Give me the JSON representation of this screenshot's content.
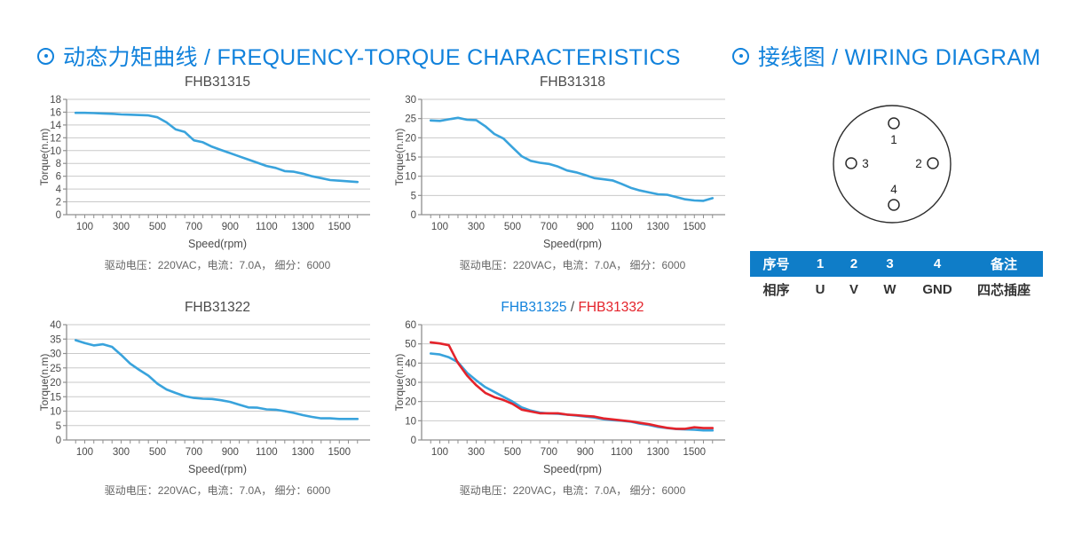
{
  "colors": {
    "accent_blue": "#1182DC",
    "curve_blue": "#39A3DC",
    "curve_red": "#E4232B",
    "table_header_bg": "#0F7DC8",
    "grid_gray": "#c9c9c9",
    "axis_gray": "#8f8f8f",
    "tick_text": "#4a4a4a"
  },
  "sections": {
    "charts_title": "动态力矩曲线 / FREQUENCY-TORQUE CHARACTERISTICS",
    "wiring_title": "接线图 / WIRING DIAGRAM"
  },
  "chart_data": [
    {
      "type": "line",
      "title_parts": [
        {
          "text": "FHB31315",
          "color": "#4a4a4a"
        }
      ],
      "xlabel": "Speed(rpm)",
      "ylabel": "Torque(n.m)",
      "caption": "驱动电压：220VAC，电流：7.0A， 细分：6000",
      "xlim": [
        0,
        1650
      ],
      "ylim": [
        0,
        18
      ],
      "ystep": 2,
      "xticks_labeled": [
        100,
        300,
        500,
        700,
        900,
        1100,
        1300,
        1500
      ],
      "xticks_minor_step": 50,
      "grid": "horizontal",
      "legend": "none",
      "series": [
        {
          "name": "FHB31315",
          "color": "#39A3DC",
          "points": [
            [
              50,
              15.9
            ],
            [
              100,
              15.9
            ],
            [
              150,
              15.85
            ],
            [
              200,
              15.8
            ],
            [
              250,
              15.75
            ],
            [
              300,
              15.65
            ],
            [
              350,
              15.6
            ],
            [
              400,
              15.55
            ],
            [
              450,
              15.5
            ],
            [
              500,
              15.2
            ],
            [
              550,
              14.4
            ],
            [
              600,
              13.3
            ],
            [
              650,
              12.9
            ],
            [
              700,
              11.6
            ],
            [
              750,
              11.3
            ],
            [
              800,
              10.6
            ],
            [
              850,
              10.1
            ],
            [
              900,
              9.6
            ],
            [
              950,
              9.1
            ],
            [
              1000,
              8.6
            ],
            [
              1050,
              8.1
            ],
            [
              1100,
              7.6
            ],
            [
              1150,
              7.3
            ],
            [
              1200,
              6.8
            ],
            [
              1250,
              6.7
            ],
            [
              1300,
              6.4
            ],
            [
              1350,
              6.0
            ],
            [
              1400,
              5.7
            ],
            [
              1450,
              5.4
            ],
            [
              1500,
              5.3
            ],
            [
              1550,
              5.2
            ],
            [
              1600,
              5.1
            ]
          ]
        }
      ]
    },
    {
      "type": "line",
      "title_parts": [
        {
          "text": "FHB31318",
          "color": "#4a4a4a"
        }
      ],
      "xlabel": "Speed(rpm)",
      "ylabel": "Torque(n.m)",
      "caption": "驱动电压：220VAC，电流：7.0A， 细分：6000",
      "xlim": [
        0,
        1650
      ],
      "ylim": [
        0,
        30
      ],
      "ystep": 5,
      "xticks_labeled": [
        100,
        300,
        500,
        700,
        900,
        1100,
        1300,
        1500
      ],
      "xticks_minor_step": 50,
      "grid": "horizontal",
      "legend": "none",
      "series": [
        {
          "name": "FHB31318",
          "color": "#39A3DC",
          "points": [
            [
              50,
              24.5
            ],
            [
              100,
              24.4
            ],
            [
              150,
              24.8
            ],
            [
              200,
              25.2
            ],
            [
              250,
              24.7
            ],
            [
              300,
              24.6
            ],
            [
              350,
              23.0
            ],
            [
              400,
              21.0
            ],
            [
              450,
              19.8
            ],
            [
              500,
              17.5
            ],
            [
              550,
              15.2
            ],
            [
              600,
              14.0
            ],
            [
              650,
              13.5
            ],
            [
              700,
              13.2
            ],
            [
              750,
              12.5
            ],
            [
              800,
              11.5
            ],
            [
              850,
              11.0
            ],
            [
              900,
              10.3
            ],
            [
              950,
              9.5
            ],
            [
              1000,
              9.2
            ],
            [
              1050,
              8.9
            ],
            [
              1100,
              8.0
            ],
            [
              1150,
              7.0
            ],
            [
              1200,
              6.3
            ],
            [
              1250,
              5.8
            ],
            [
              1300,
              5.3
            ],
            [
              1350,
              5.2
            ],
            [
              1400,
              4.6
            ],
            [
              1450,
              4.0
            ],
            [
              1500,
              3.7
            ],
            [
              1550,
              3.6
            ],
            [
              1600,
              4.3
            ]
          ]
        }
      ]
    },
    {
      "type": "line",
      "title_parts": [
        {
          "text": "FHB31322",
          "color": "#4a4a4a"
        }
      ],
      "xlabel": "Speed(rpm)",
      "ylabel": "Torque(n.m)",
      "caption": "驱动电压：220VAC，电流：7.0A， 细分：6000",
      "xlim": [
        0,
        1650
      ],
      "ylim": [
        0,
        40
      ],
      "ystep": 5,
      "xticks_labeled": [
        100,
        300,
        500,
        700,
        900,
        1100,
        1300,
        1500
      ],
      "xticks_minor_step": 50,
      "grid": "horizontal",
      "legend": "none",
      "series": [
        {
          "name": "FHB31322",
          "color": "#39A3DC",
          "points": [
            [
              50,
              34.6
            ],
            [
              100,
              33.6
            ],
            [
              150,
              32.8
            ],
            [
              200,
              33.2
            ],
            [
              250,
              32.3
            ],
            [
              300,
              29.5
            ],
            [
              350,
              26.5
            ],
            [
              400,
              24.3
            ],
            [
              450,
              22.3
            ],
            [
              500,
              19.5
            ],
            [
              550,
              17.5
            ],
            [
              600,
              16.3
            ],
            [
              650,
              15.2
            ],
            [
              700,
              14.6
            ],
            [
              750,
              14.3
            ],
            [
              800,
              14.2
            ],
            [
              850,
              13.8
            ],
            [
              900,
              13.2
            ],
            [
              950,
              12.2
            ],
            [
              1000,
              11.3
            ],
            [
              1050,
              11.2
            ],
            [
              1100,
              10.6
            ],
            [
              1150,
              10.5
            ],
            [
              1200,
              10.0
            ],
            [
              1250,
              9.4
            ],
            [
              1300,
              8.6
            ],
            [
              1350,
              8.0
            ],
            [
              1400,
              7.5
            ],
            [
              1450,
              7.5
            ],
            [
              1500,
              7.3
            ],
            [
              1550,
              7.3
            ],
            [
              1600,
              7.3
            ]
          ]
        }
      ]
    },
    {
      "type": "line",
      "title_parts": [
        {
          "text": "FHB31325",
          "color": "#1182DC"
        },
        {
          "text": " / ",
          "color": "#4a4a4a"
        },
        {
          "text": "FHB31332",
          "color": "#E4232B"
        }
      ],
      "xlabel": "Speed(rpm)",
      "ylabel": "Torque(n.m)",
      "caption": "驱动电压：220VAC，电流：7.0A， 细分：6000",
      "xlim": [
        0,
        1650
      ],
      "ylim": [
        0,
        60
      ],
      "ystep": 10,
      "xticks_labeled": [
        100,
        300,
        500,
        700,
        900,
        1100,
        1300,
        1500
      ],
      "xticks_minor_step": 50,
      "grid": "horizontal",
      "legend": "title-colors",
      "series": [
        {
          "name": "FHB31325",
          "color": "#39A3DC",
          "points": [
            [
              50,
              45
            ],
            [
              100,
              44.5
            ],
            [
              150,
              43
            ],
            [
              200,
              40.5
            ],
            [
              250,
              35
            ],
            [
              300,
              31
            ],
            [
              350,
              27.5
            ],
            [
              400,
              25
            ],
            [
              450,
              22.5
            ],
            [
              500,
              20
            ],
            [
              550,
              17
            ],
            [
              600,
              15.3
            ],
            [
              650,
              14.2
            ],
            [
              700,
              13.8
            ],
            [
              750,
              13.6
            ],
            [
              800,
              13.2
            ],
            [
              850,
              12.7
            ],
            [
              900,
              12.2
            ],
            [
              950,
              11.7
            ],
            [
              1000,
              10.8
            ],
            [
              1050,
              10.3
            ],
            [
              1100,
              10.0
            ],
            [
              1150,
              9.5
            ],
            [
              1200,
              8.5
            ],
            [
              1250,
              7.8
            ],
            [
              1300,
              6.8
            ],
            [
              1350,
              6.2
            ],
            [
              1400,
              5.7
            ],
            [
              1450,
              5.5
            ],
            [
              1500,
              5.3
            ],
            [
              1550,
              5.0
            ],
            [
              1600,
              5.0
            ]
          ]
        },
        {
          "name": "FHB31332",
          "color": "#E4232B",
          "points": [
            [
              50,
              50.8
            ],
            [
              100,
              50.2
            ],
            [
              150,
              49.3
            ],
            [
              200,
              40.0
            ],
            [
              250,
              33.5
            ],
            [
              300,
              28.5
            ],
            [
              350,
              24.5
            ],
            [
              400,
              22.3
            ],
            [
              450,
              20.8
            ],
            [
              500,
              18.8
            ],
            [
              550,
              15.8
            ],
            [
              600,
              14.8
            ],
            [
              650,
              13.9
            ],
            [
              700,
              13.9
            ],
            [
              750,
              13.9
            ],
            [
              800,
              13.2
            ],
            [
              850,
              12.9
            ],
            [
              900,
              12.5
            ],
            [
              950,
              12.2
            ],
            [
              1000,
              11.2
            ],
            [
              1050,
              10.7
            ],
            [
              1100,
              10.2
            ],
            [
              1150,
              9.7
            ],
            [
              1200,
              8.9
            ],
            [
              1250,
              8.2
            ],
            [
              1300,
              7.2
            ],
            [
              1350,
              6.3
            ],
            [
              1400,
              5.8
            ],
            [
              1450,
              5.8
            ],
            [
              1500,
              6.6
            ],
            [
              1550,
              6.2
            ],
            [
              1600,
              6.2
            ]
          ]
        }
      ]
    }
  ],
  "wiring": {
    "pins": [
      {
        "label": "1",
        "pos": "top"
      },
      {
        "label": "2",
        "pos": "right"
      },
      {
        "label": "3",
        "pos": "left"
      },
      {
        "label": "4",
        "pos": "bottom"
      }
    ],
    "table": {
      "header": [
        "序号",
        "1",
        "2",
        "3",
        "4",
        "备注"
      ],
      "row": [
        "相序",
        "U",
        "V",
        "W",
        "GND",
        "四芯插座"
      ]
    }
  }
}
